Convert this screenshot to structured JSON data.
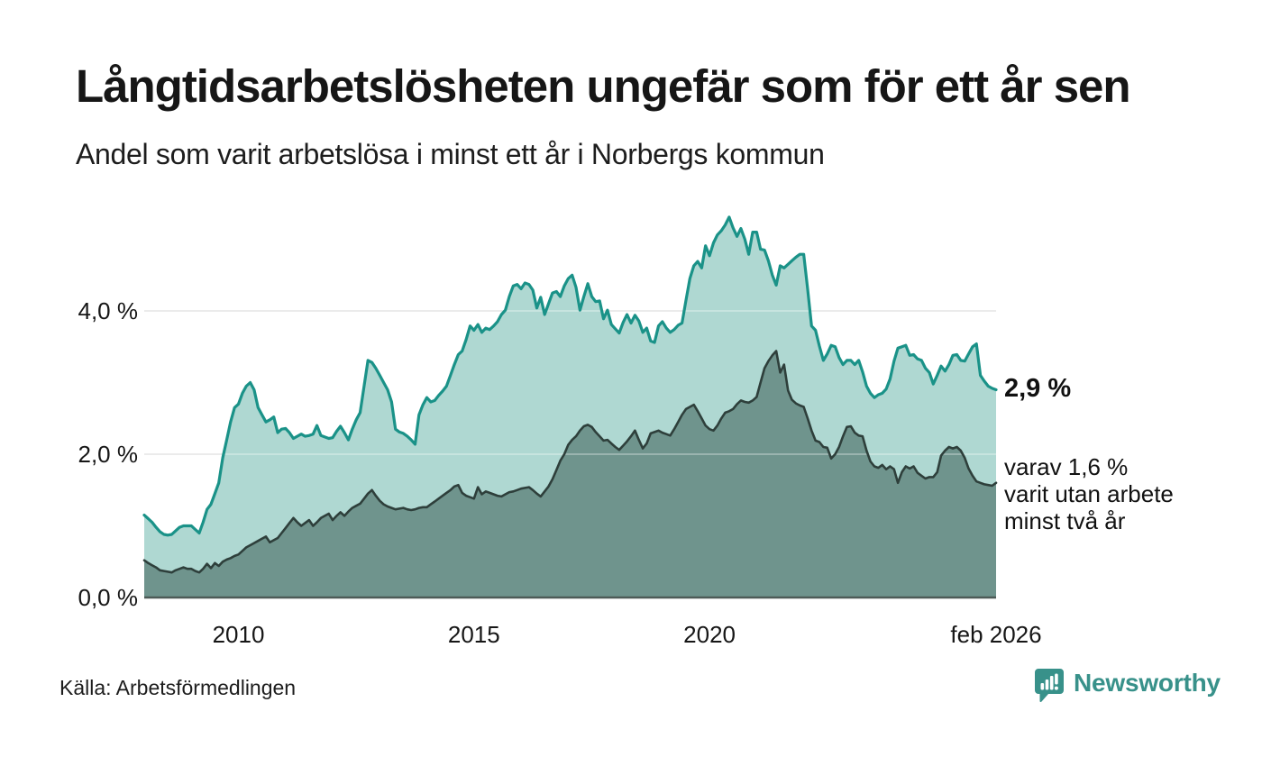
{
  "header": {
    "title": "Långtidsarbetslösheten ungefär som för ett år sen",
    "subtitle": "Andel som varit arbetslösa i minst ett år i Norbergs kommun"
  },
  "annotations": {
    "total_end_label": "2,9 %",
    "sub_end_lines": [
      "varav 1,6 %",
      "varit utan arbete",
      "minst två år"
    ]
  },
  "footer": {
    "source": "Källa: Arbetsförmedlingen",
    "logo_text": "Newsworthy",
    "logo_color": "#38918a"
  },
  "chart_data": {
    "type": "area",
    "title": "Långtidsarbetslösheten ungefär som för ett år sen",
    "subtitle": "Andel som varit arbetslösa i minst ett år i Norbergs kommun",
    "unit": "%",
    "frequency": "monthly",
    "legend_position": "none",
    "grid": true,
    "baseline_color": "#4d5b57",
    "x_axis": {
      "start": 2008.0,
      "end": 2026.083,
      "ticks": [
        {
          "pos": 2010,
          "label": "2010"
        },
        {
          "pos": 2015,
          "label": "2015"
        },
        {
          "pos": 2020,
          "label": "2020"
        },
        {
          "pos": 2026.083,
          "label": "feb 2026"
        }
      ]
    },
    "y_axis": {
      "min": 0,
      "max": 5.6,
      "gridline_color": "#e2e2e2",
      "ticks": [
        {
          "value": 0,
          "label": "0,0 %"
        },
        {
          "value": 2,
          "label": "2,0 %"
        },
        {
          "value": 4,
          "label": "4,0 %"
        }
      ]
    },
    "series": [
      {
        "name": "Arbetslösa minst ett år",
        "line_color": "#1a9288",
        "fill_color": "#afd8d2",
        "end_value": 2.9,
        "end_label": "2,9 %",
        "values": [
          1.15,
          1.1,
          1.05,
          0.98,
          0.92,
          0.88,
          0.87,
          0.88,
          0.93,
          0.98,
          1.0,
          1.0,
          1.0,
          0.95,
          0.9,
          1.05,
          1.23,
          1.3,
          1.45,
          1.6,
          1.95,
          2.2,
          2.45,
          2.65,
          2.7,
          2.85,
          2.95,
          3.0,
          2.9,
          2.65,
          2.55,
          2.45,
          2.48,
          2.52,
          2.3,
          2.35,
          2.36,
          2.3,
          2.22,
          2.25,
          2.28,
          2.25,
          2.26,
          2.28,
          2.4,
          2.26,
          2.24,
          2.22,
          2.23,
          2.32,
          2.39,
          2.3,
          2.2,
          2.35,
          2.48,
          2.58,
          2.95,
          3.31,
          3.28,
          3.2,
          3.1,
          3.0,
          2.9,
          2.73,
          2.35,
          2.31,
          2.29,
          2.25,
          2.2,
          2.14,
          2.55,
          2.69,
          2.79,
          2.73,
          2.75,
          2.82,
          2.88,
          2.95,
          3.1,
          3.25,
          3.39,
          3.44,
          3.6,
          3.79,
          3.73,
          3.81,
          3.7,
          3.76,
          3.74,
          3.79,
          3.85,
          3.95,
          4.01,
          4.2,
          4.35,
          4.37,
          4.31,
          4.39,
          4.37,
          4.29,
          4.04,
          4.19,
          3.95,
          4.1,
          4.25,
          4.27,
          4.2,
          4.35,
          4.45,
          4.5,
          4.33,
          4.01,
          4.2,
          4.38,
          4.2,
          4.13,
          4.14,
          3.89,
          4.01,
          3.81,
          3.75,
          3.69,
          3.84,
          3.95,
          3.83,
          3.94,
          3.86,
          3.7,
          3.76,
          3.58,
          3.56,
          3.79,
          3.85,
          3.76,
          3.7,
          3.74,
          3.8,
          3.83,
          4.15,
          4.45,
          4.63,
          4.69,
          4.6,
          4.91,
          4.77,
          4.95,
          5.06,
          5.12,
          5.2,
          5.31,
          5.16,
          5.04,
          5.15,
          5.0,
          4.79,
          5.1,
          5.1,
          4.86,
          4.85,
          4.7,
          4.5,
          4.36,
          4.63,
          4.6,
          4.65,
          4.7,
          4.75,
          4.79,
          4.79,
          4.3,
          3.79,
          3.73,
          3.51,
          3.31,
          3.4,
          3.52,
          3.5,
          3.35,
          3.25,
          3.31,
          3.31,
          3.25,
          3.31,
          3.15,
          2.95,
          2.85,
          2.79,
          2.83,
          2.85,
          2.91,
          3.05,
          3.3,
          3.48,
          3.5,
          3.52,
          3.38,
          3.39,
          3.33,
          3.31,
          3.2,
          3.14,
          2.98,
          3.1,
          3.23,
          3.16,
          3.25,
          3.38,
          3.39,
          3.31,
          3.3,
          3.4,
          3.5,
          3.54,
          3.1,
          3.02,
          2.95,
          2.92,
          2.9
        ]
      },
      {
        "name": "Arbetslösa minst två år",
        "line_color": "#2e3f3b",
        "fill_color": "#6f948d",
        "end_value": 1.6,
        "end_label": "varav 1,6 % varit utan arbete minst två år",
        "values": [
          0.52,
          0.48,
          0.45,
          0.42,
          0.38,
          0.37,
          0.36,
          0.35,
          0.38,
          0.4,
          0.42,
          0.4,
          0.4,
          0.37,
          0.35,
          0.4,
          0.47,
          0.41,
          0.48,
          0.44,
          0.5,
          0.53,
          0.55,
          0.58,
          0.6,
          0.65,
          0.7,
          0.73,
          0.76,
          0.79,
          0.82,
          0.85,
          0.77,
          0.8,
          0.83,
          0.9,
          0.97,
          1.04,
          1.11,
          1.05,
          1.0,
          1.04,
          1.08,
          1.0,
          1.05,
          1.11,
          1.14,
          1.17,
          1.08,
          1.14,
          1.19,
          1.14,
          1.2,
          1.25,
          1.28,
          1.31,
          1.38,
          1.45,
          1.5,
          1.42,
          1.35,
          1.3,
          1.27,
          1.25,
          1.23,
          1.24,
          1.25,
          1.23,
          1.22,
          1.23,
          1.25,
          1.26,
          1.26,
          1.3,
          1.34,
          1.38,
          1.42,
          1.46,
          1.5,
          1.55,
          1.57,
          1.46,
          1.42,
          1.4,
          1.38,
          1.54,
          1.44,
          1.48,
          1.46,
          1.44,
          1.42,
          1.41,
          1.44,
          1.47,
          1.48,
          1.5,
          1.52,
          1.53,
          1.54,
          1.5,
          1.45,
          1.41,
          1.48,
          1.55,
          1.65,
          1.78,
          1.91,
          2.0,
          2.13,
          2.2,
          2.25,
          2.33,
          2.39,
          2.41,
          2.38,
          2.31,
          2.25,
          2.19,
          2.2,
          2.15,
          2.1,
          2.06,
          2.12,
          2.18,
          2.25,
          2.33,
          2.2,
          2.08,
          2.15,
          2.29,
          2.31,
          2.33,
          2.3,
          2.28,
          2.26,
          2.35,
          2.45,
          2.55,
          2.63,
          2.66,
          2.69,
          2.6,
          2.5,
          2.4,
          2.35,
          2.33,
          2.4,
          2.5,
          2.58,
          2.6,
          2.63,
          2.7,
          2.75,
          2.73,
          2.72,
          2.75,
          2.8,
          3.0,
          3.2,
          3.3,
          3.38,
          3.44,
          3.14,
          3.25,
          2.89,
          2.76,
          2.71,
          2.68,
          2.66,
          2.5,
          2.33,
          2.19,
          2.17,
          2.1,
          2.09,
          1.94,
          2.0,
          2.1,
          2.25,
          2.38,
          2.39,
          2.3,
          2.26,
          2.25,
          2.05,
          1.9,
          1.83,
          1.81,
          1.85,
          1.79,
          1.83,
          1.79,
          1.6,
          1.75,
          1.83,
          1.8,
          1.83,
          1.74,
          1.7,
          1.66,
          1.68,
          1.68,
          1.75,
          1.98,
          2.05,
          2.1,
          2.08,
          2.1,
          2.05,
          1.95,
          1.8,
          1.7,
          1.62,
          1.6,
          1.58,
          1.57,
          1.56,
          1.6
        ]
      }
    ]
  }
}
